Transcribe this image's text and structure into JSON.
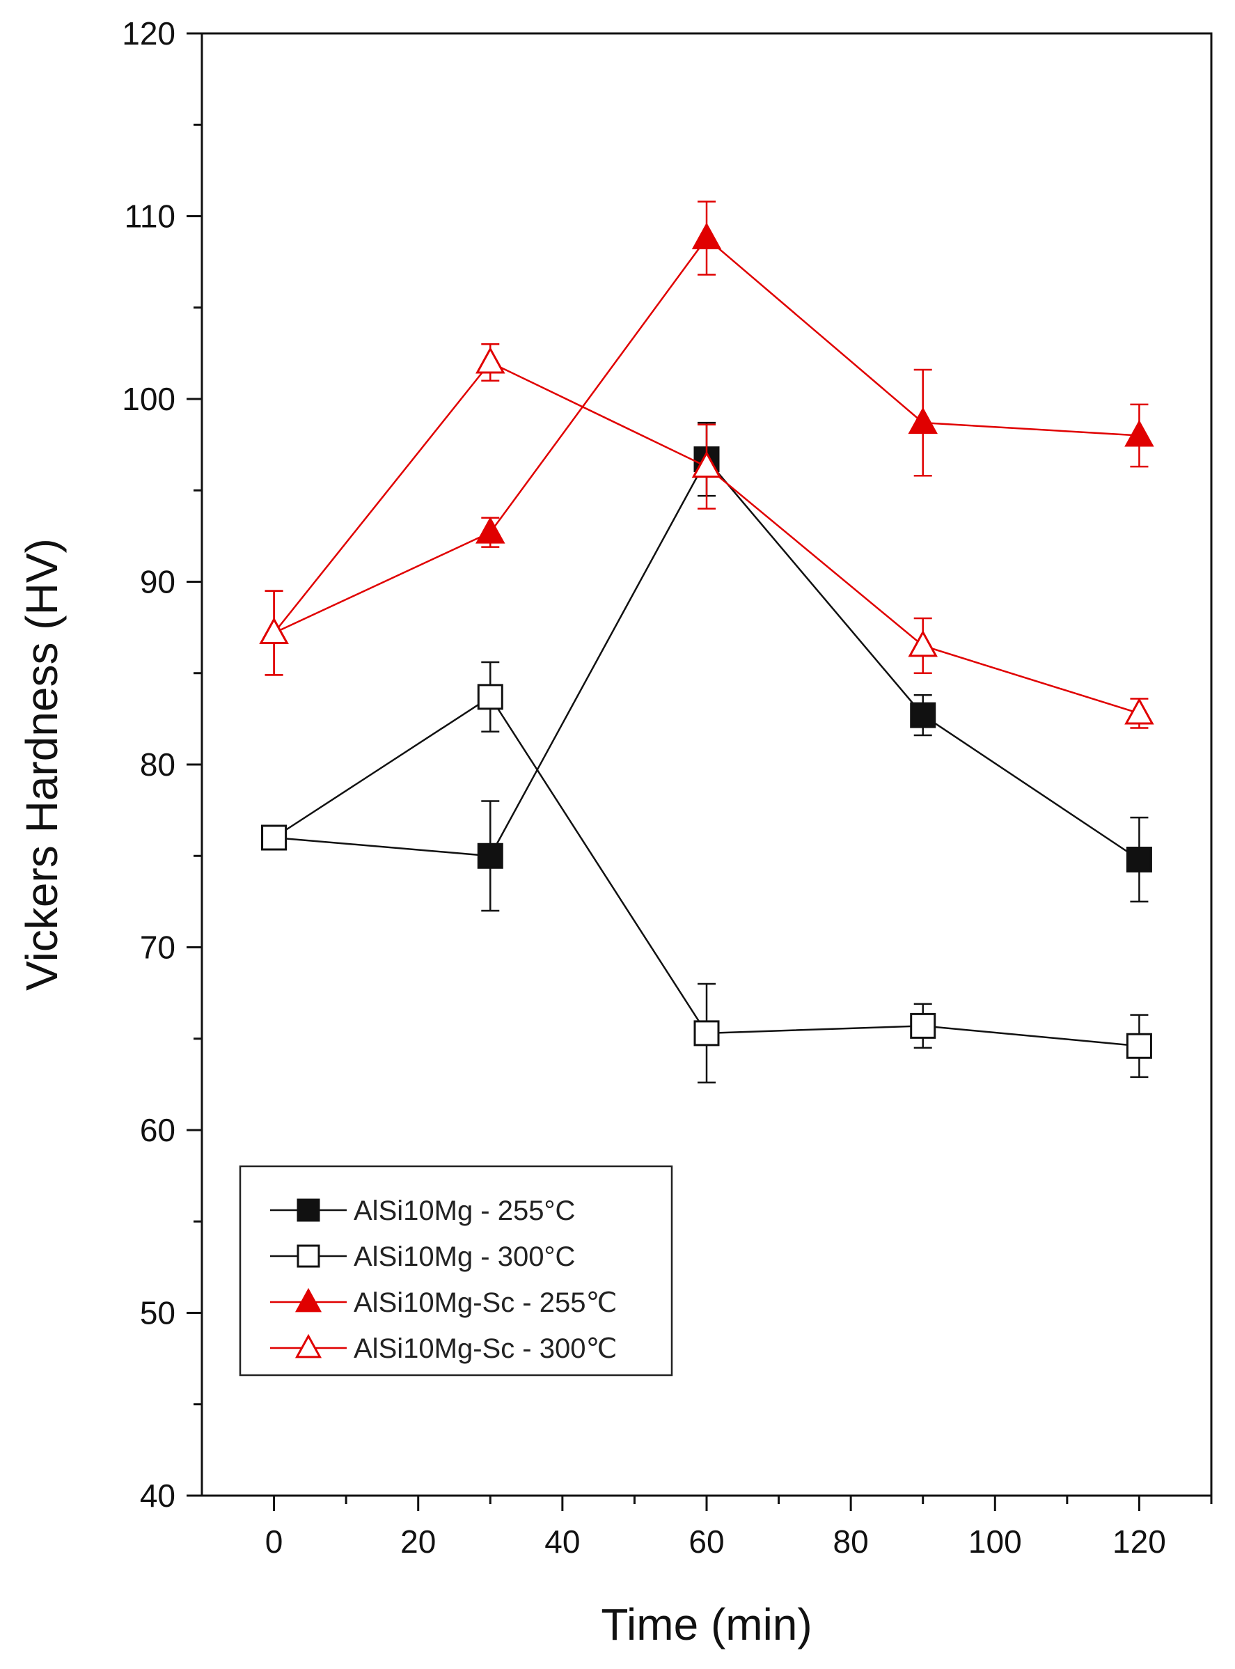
{
  "chart_data": {
    "type": "line",
    "title": "",
    "xlabel": "Time (min)",
    "ylabel": "Vickers Hardness (HV)",
    "xlim": [
      -10,
      130
    ],
    "ylim": [
      40,
      120
    ],
    "xticks": [
      0,
      20,
      40,
      60,
      80,
      100,
      120
    ],
    "yticks": [
      40,
      50,
      60,
      70,
      80,
      90,
      100,
      110,
      120
    ],
    "x": [
      0,
      30,
      60,
      90,
      120
    ],
    "grid": false,
    "legend_position": "bottom-left",
    "series": [
      {
        "name": "AlSi10Mg - 255°C",
        "color": "#111111",
        "marker": "square",
        "filled": true,
        "x": [
          0,
          30,
          60,
          90,
          120
        ],
        "values": [
          76,
          75,
          96.7,
          82.7,
          74.8
        ],
        "errors": [
          0,
          3,
          2,
          1.1,
          2.3
        ]
      },
      {
        "name": "AlSi10Mg - 300°C",
        "color": "#111111",
        "marker": "square",
        "filled": false,
        "x": [
          0,
          30,
          60,
          90,
          120
        ],
        "values": [
          76,
          83.7,
          65.3,
          65.7,
          64.6
        ],
        "errors": [
          0,
          1.9,
          2.7,
          1.2,
          1.7
        ]
      },
      {
        "name": "AlSi10Mg-Sc - 255℃",
        "color": "#e00000",
        "marker": "triangle",
        "filled": true,
        "x": [
          0,
          30,
          60,
          90,
          120
        ],
        "values": [
          87.2,
          92.7,
          108.8,
          98.7,
          98
        ],
        "errors": [
          2.3,
          0.8,
          2,
          2.9,
          1.7
        ]
      },
      {
        "name": "AlSi10Mg-Sc - 300℃",
        "color": "#e00000",
        "marker": "triangle",
        "filled": false,
        "x": [
          0,
          30,
          60,
          90,
          120
        ],
        "values": [
          87.2,
          102,
          96.3,
          86.5,
          82.8
        ],
        "errors": [
          2.3,
          1,
          2.3,
          1.5,
          0.8
        ]
      }
    ]
  }
}
